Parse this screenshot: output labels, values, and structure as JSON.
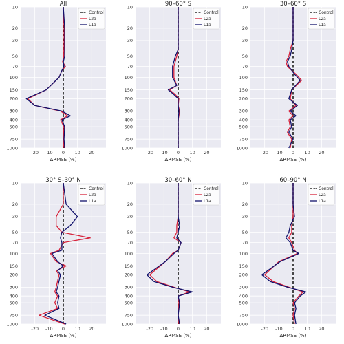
{
  "chart_data": {
    "type": "line",
    "legend_placement": "top-right",
    "grid": true,
    "y_scale": "log",
    "y_inverted": true,
    "ylim": [
      1000,
      10
    ],
    "xlim": [
      -30,
      30
    ],
    "xticks": [
      -20,
      -10,
      0,
      10,
      20
    ],
    "yticks": [
      10,
      20,
      30,
      50,
      70,
      100,
      150,
      200,
      300,
      400,
      500,
      750,
      1000
    ],
    "xlabel": "ΔRMSE (%)",
    "legend": [
      {
        "name": "Control",
        "color": "#000000",
        "dash": true
      },
      {
        "name": "L2a",
        "color": "#d6213a",
        "dash": false
      },
      {
        "name": "L1a",
        "color": "#11116b",
        "dash": false
      }
    ],
    "panels": [
      {
        "title": "All",
        "series": [
          {
            "name": "L2a",
            "points": [
              [
                0,
                10
              ],
              [
                0.5,
                20
              ],
              [
                0.5,
                30
              ],
              [
                0.3,
                50
              ],
              [
                -0.5,
                60
              ],
              [
                1.5,
                70
              ],
              [
                -1,
                80
              ],
              [
                -3,
                100
              ],
              [
                -12,
                150
              ],
              [
                -25,
                200
              ],
              [
                -20,
                250
              ],
              [
                -2,
                300
              ],
              [
                3,
                350
              ],
              [
                -2,
                400
              ],
              [
                0.5,
                500
              ],
              [
                0,
                750
              ],
              [
                0.5,
                1000
              ]
            ]
          },
          {
            "name": "L1a",
            "points": [
              [
                0,
                10
              ],
              [
                1,
                20
              ],
              [
                1,
                30
              ],
              [
                1,
                50
              ],
              [
                0,
                60
              ],
              [
                0.5,
                70
              ],
              [
                -1,
                80
              ],
              [
                -3,
                100
              ],
              [
                -12,
                150
              ],
              [
                -26,
                200
              ],
              [
                -20,
                250
              ],
              [
                -1,
                300
              ],
              [
                5,
                350
              ],
              [
                -1,
                400
              ],
              [
                1,
                500
              ],
              [
                0.5,
                750
              ],
              [
                1,
                1000
              ]
            ]
          }
        ]
      },
      {
        "title": "90–60° S",
        "series": [
          {
            "name": "L2a",
            "points": [
              [
                0,
                10
              ],
              [
                0,
                20
              ],
              [
                0,
                30
              ],
              [
                0,
                40
              ],
              [
                -1,
                50
              ],
              [
                -3,
                70
              ],
              [
                -3,
                100
              ],
              [
                -1,
                130
              ],
              [
                -6,
                150
              ],
              [
                -2,
                175
              ],
              [
                0.5,
                200
              ],
              [
                0,
                250
              ],
              [
                1,
                300
              ],
              [
                0,
                400
              ],
              [
                0,
                500
              ],
              [
                0,
                750
              ],
              [
                0,
                1000
              ]
            ]
          },
          {
            "name": "L1a",
            "points": [
              [
                0,
                10
              ],
              [
                0,
                20
              ],
              [
                0,
                30
              ],
              [
                0,
                40
              ],
              [
                -2,
                50
              ],
              [
                -4,
                70
              ],
              [
                -4,
                100
              ],
              [
                -1,
                130
              ],
              [
                -7,
                150
              ],
              [
                -3,
                175
              ],
              [
                0,
                200
              ],
              [
                0,
                250
              ],
              [
                0.5,
                300
              ],
              [
                0,
                400
              ],
              [
                0,
                500
              ],
              [
                0,
                750
              ],
              [
                0,
                1000
              ]
            ]
          }
        ]
      },
      {
        "title": "30–60° S",
        "series": [
          {
            "name": "L2a",
            "points": [
              [
                0,
                10
              ],
              [
                0,
                20
              ],
              [
                0,
                30
              ],
              [
                -2,
                40
              ],
              [
                -3,
                50
              ],
              [
                -5,
                60
              ],
              [
                -4,
                70
              ],
              [
                2,
                90
              ],
              [
                6,
                110
              ],
              [
                -1,
                150
              ],
              [
                -2,
                200
              ],
              [
                2,
                250
              ],
              [
                -3,
                300
              ],
              [
                0,
                350
              ],
              [
                -3,
                400
              ],
              [
                -2,
                500
              ],
              [
                -4,
                600
              ],
              [
                -1,
                750
              ],
              [
                -2,
                1000
              ]
            ]
          },
          {
            "name": "L1a",
            "points": [
              [
                0,
                10
              ],
              [
                0,
                20
              ],
              [
                0,
                30
              ],
              [
                -1,
                40
              ],
              [
                -2,
                50
              ],
              [
                -4,
                60
              ],
              [
                -3,
                70
              ],
              [
                1,
                90
              ],
              [
                5,
                110
              ],
              [
                -1,
                150
              ],
              [
                -3,
                200
              ],
              [
                3,
                250
              ],
              [
                -2,
                300
              ],
              [
                2,
                350
              ],
              [
                -2,
                400
              ],
              [
                -1,
                500
              ],
              [
                -3,
                600
              ],
              [
                0,
                750
              ],
              [
                -3,
                1000
              ]
            ]
          }
        ]
      },
      {
        "title": "30° S–30° N",
        "series": [
          {
            "name": "L2a",
            "points": [
              [
                0,
                10
              ],
              [
                0,
                20
              ],
              [
                -5,
                30
              ],
              [
                -5,
                40
              ],
              [
                -1,
                50
              ],
              [
                19,
                60
              ],
              [
                0,
                70
              ],
              [
                -3,
                90
              ],
              [
                -9,
                100
              ],
              [
                -5,
                130
              ],
              [
                2,
                150
              ],
              [
                -5,
                175
              ],
              [
                -3,
                200
              ],
              [
                -5,
                300
              ],
              [
                -6,
                350
              ],
              [
                -4,
                400
              ],
              [
                -6,
                500
              ],
              [
                -4,
                600
              ],
              [
                -17,
                750
              ],
              [
                1,
                1000
              ]
            ]
          },
          {
            "name": "L1a",
            "points": [
              [
                0,
                10
              ],
              [
                2,
                20
              ],
              [
                10,
                30
              ],
              [
                5,
                40
              ],
              [
                -1,
                50
              ],
              [
                -2,
                60
              ],
              [
                -1,
                70
              ],
              [
                -1,
                90
              ],
              [
                -8,
                100
              ],
              [
                -4,
                130
              ],
              [
                0,
                150
              ],
              [
                -4,
                175
              ],
              [
                -2,
                200
              ],
              [
                -4,
                300
              ],
              [
                -5,
                350
              ],
              [
                -3,
                400
              ],
              [
                -4,
                500
              ],
              [
                -3,
                600
              ],
              [
                -13,
                750
              ],
              [
                2,
                1000
              ]
            ]
          }
        ]
      },
      {
        "title": "30–60° N",
        "series": [
          {
            "name": "L2a",
            "points": [
              [
                0,
                10
              ],
              [
                0,
                20
              ],
              [
                0,
                30
              ],
              [
                -1,
                40
              ],
              [
                -1,
                50
              ],
              [
                -3,
                60
              ],
              [
                2,
                70
              ],
              [
                0,
                90
              ],
              [
                -4,
                100
              ],
              [
                -9,
                130
              ],
              [
                -20,
                200
              ],
              [
                -15,
                250
              ],
              [
                -3,
                300
              ],
              [
                8,
                350
              ],
              [
                0,
                400
              ],
              [
                0.5,
                500
              ],
              [
                0,
                750
              ],
              [
                0.5,
                1000
              ]
            ]
          },
          {
            "name": "L1a",
            "points": [
              [
                0,
                10
              ],
              [
                0,
                20
              ],
              [
                0,
                30
              ],
              [
                1,
                40
              ],
              [
                0,
                50
              ],
              [
                -1,
                60
              ],
              [
                2,
                70
              ],
              [
                0,
                90
              ],
              [
                -3,
                100
              ],
              [
                -9,
                130
              ],
              [
                -22,
                200
              ],
              [
                -17,
                250
              ],
              [
                -4,
                300
              ],
              [
                10,
                350
              ],
              [
                0,
                400
              ],
              [
                1,
                500
              ],
              [
                0,
                750
              ],
              [
                1,
                1000
              ]
            ]
          }
        ]
      },
      {
        "title": "60–90° N",
        "series": [
          {
            "name": "L2a",
            "points": [
              [
                0,
                10
              ],
              [
                0,
                20
              ],
              [
                0,
                30
              ],
              [
                -1,
                40
              ],
              [
                -1,
                50
              ],
              [
                -3,
                60
              ],
              [
                -1,
                70
              ],
              [
                1,
                90
              ],
              [
                3,
                100
              ],
              [
                -10,
                130
              ],
              [
                -20,
                200
              ],
              [
                -14,
                250
              ],
              [
                -3,
                300
              ],
              [
                7,
                350
              ],
              [
                4,
                400
              ],
              [
                0,
                500
              ],
              [
                1,
                600
              ],
              [
                0,
                750
              ],
              [
                1,
                1000
              ]
            ]
          },
          {
            "name": "L1a",
            "points": [
              [
                0,
                10
              ],
              [
                0,
                20
              ],
              [
                1,
                30
              ],
              [
                -2,
                40
              ],
              [
                -3,
                50
              ],
              [
                -5,
                60
              ],
              [
                -2,
                70
              ],
              [
                0,
                90
              ],
              [
                4,
                100
              ],
              [
                -9,
                130
              ],
              [
                -22,
                200
              ],
              [
                -16,
                250
              ],
              [
                -4,
                300
              ],
              [
                9,
                350
              ],
              [
                5,
                400
              ],
              [
                1,
                500
              ],
              [
                2,
                600
              ],
              [
                1,
                750
              ],
              [
                2,
                1000
              ]
            ]
          }
        ]
      }
    ]
  }
}
